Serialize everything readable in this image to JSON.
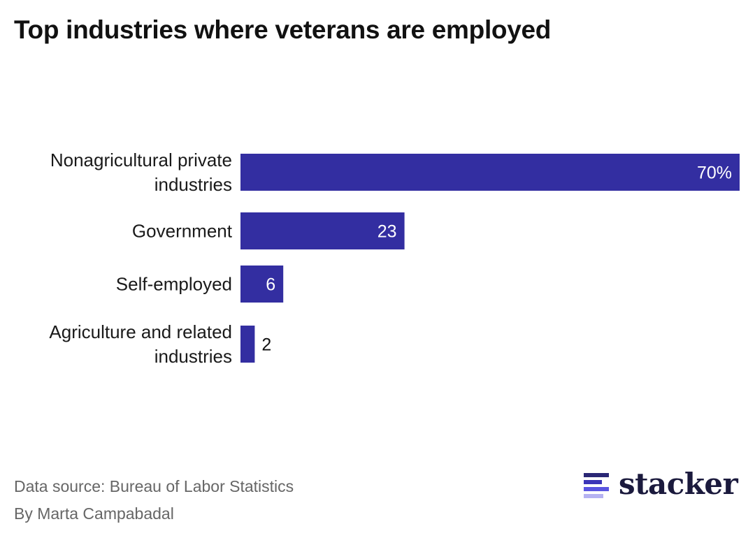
{
  "title": "Top industries where veterans are employed",
  "chart_data": {
    "type": "bar",
    "orientation": "horizontal",
    "title": "Top industries where veterans are employed",
    "categories": [
      [
        "Nonagricultural private",
        "industries"
      ],
      [
        "Government"
      ],
      [
        "Self-employed"
      ],
      [
        "Agriculture and related",
        "industries"
      ]
    ],
    "values": [
      70,
      23,
      6,
      2
    ],
    "value_labels": [
      "70%",
      "23",
      "6",
      "2"
    ],
    "unit": "%",
    "xlabel": "",
    "ylabel": "",
    "xlim": [
      0,
      70
    ],
    "grid": false,
    "bar_color": "#332ea1"
  },
  "footer": {
    "source": "Data source: Bureau of Labor Statistics",
    "byline": "By Marta Campabadal"
  },
  "brand": {
    "name": "stacker",
    "logo_icon": "stacker-logo-icon",
    "colors": [
      "#2a2775",
      "#3b35b8",
      "#5a55e0",
      "#b5b2f2"
    ]
  }
}
